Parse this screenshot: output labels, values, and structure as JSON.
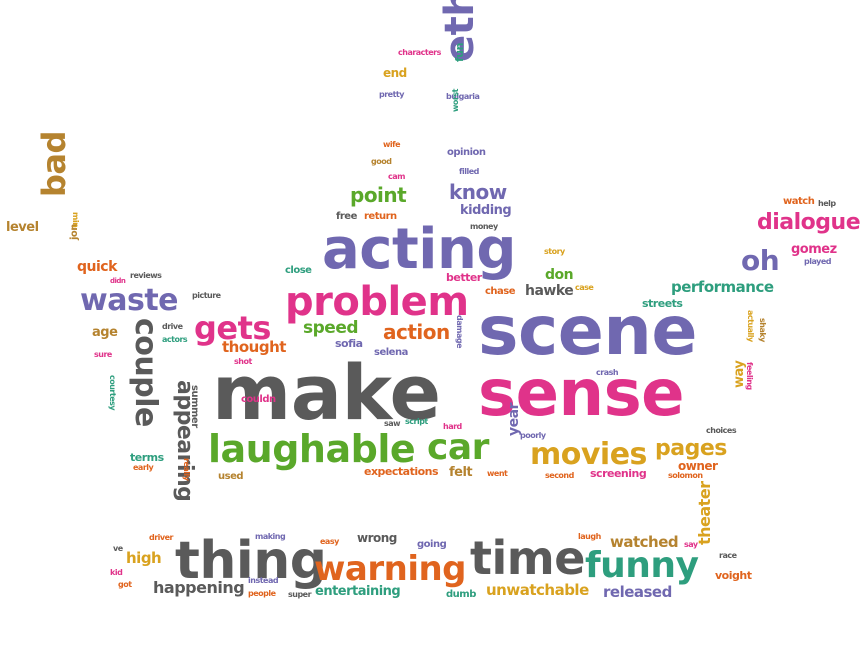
{
  "colors": {
    "gray": "#5a5a5a",
    "purple": "#7068b0",
    "magenta": "#e0338a",
    "green": "#5aa82a",
    "orange": "#e0641e",
    "gold": "#d9a21f",
    "teal": "#2e9e7e",
    "brown": "#b5832f"
  },
  "words": [
    {
      "text": "make",
      "color": "gray"
    },
    {
      "text": "scene",
      "color": "purple"
    },
    {
      "text": "sense",
      "color": "magenta"
    },
    {
      "text": "acting",
      "color": "purple"
    },
    {
      "text": "problem",
      "color": "magenta"
    },
    {
      "text": "ethan",
      "color": "purple"
    },
    {
      "text": "laughable",
      "color": "green"
    },
    {
      "text": "car",
      "color": "green"
    },
    {
      "text": "movies",
      "color": "gold"
    },
    {
      "text": "pages",
      "color": "gold"
    },
    {
      "text": "waste",
      "color": "purple"
    },
    {
      "text": "gets",
      "color": "magenta"
    },
    {
      "text": "couple",
      "color": "gray"
    },
    {
      "text": "appearing",
      "color": "gray"
    },
    {
      "text": "thing",
      "color": "gray"
    },
    {
      "text": "warning",
      "color": "orange"
    },
    {
      "text": "time",
      "color": "gray"
    },
    {
      "text": "funny",
      "color": "teal"
    },
    {
      "text": "dialogue",
      "color": "magenta"
    },
    {
      "text": "oh",
      "color": "purple"
    },
    {
      "text": "bad",
      "color": "brown"
    },
    {
      "text": "know",
      "color": "purple"
    },
    {
      "text": "point",
      "color": "green"
    },
    {
      "text": "kidding",
      "color": "purple"
    },
    {
      "text": "action",
      "color": "orange"
    },
    {
      "text": "speed",
      "color": "green"
    },
    {
      "text": "thought",
      "color": "orange"
    },
    {
      "text": "performance",
      "color": "teal"
    },
    {
      "text": "hawke",
      "color": "gray"
    },
    {
      "text": "don",
      "color": "green"
    },
    {
      "text": "gomez",
      "color": "magenta"
    },
    {
      "text": "quick",
      "color": "orange"
    },
    {
      "text": "level",
      "color": "brown"
    },
    {
      "text": "jon",
      "color": "brown"
    },
    {
      "text": "age",
      "color": "brown"
    },
    {
      "text": "watched",
      "color": "brown"
    },
    {
      "text": "theater",
      "color": "gold"
    },
    {
      "text": "unwatchable",
      "color": "gold"
    },
    {
      "text": "released",
      "color": "purple"
    },
    {
      "text": "entertaining",
      "color": "teal"
    },
    {
      "text": "happening",
      "color": "gray"
    },
    {
      "text": "high",
      "color": "gold"
    },
    {
      "text": "wrong",
      "color": "gray"
    },
    {
      "text": "owner",
      "color": "orange"
    },
    {
      "text": "way",
      "color": "gold"
    },
    {
      "text": "expectations",
      "color": "orange"
    },
    {
      "text": "felt",
      "color": "brown"
    },
    {
      "text": "year",
      "color": "purple"
    },
    {
      "text": "screening",
      "color": "magenta"
    },
    {
      "text": "terms",
      "color": "teal"
    },
    {
      "text": "end",
      "color": "gold"
    },
    {
      "text": "fun",
      "color": "teal"
    },
    {
      "text": "opinion",
      "color": "purple"
    },
    {
      "text": "return",
      "color": "orange"
    },
    {
      "text": "free",
      "color": "gray"
    },
    {
      "text": "close",
      "color": "teal"
    },
    {
      "text": "better",
      "color": "magenta"
    },
    {
      "text": "chase",
      "color": "orange"
    },
    {
      "text": "streets",
      "color": "teal"
    },
    {
      "text": "sofia",
      "color": "purple"
    },
    {
      "text": "selena",
      "color": "purple"
    },
    {
      "text": "used",
      "color": "brown"
    },
    {
      "text": "couldn",
      "color": "magenta"
    },
    {
      "text": "summer",
      "color": "gray"
    },
    {
      "text": "voight",
      "color": "orange"
    },
    {
      "text": "going",
      "color": "purple"
    },
    {
      "text": "dumb",
      "color": "teal"
    },
    {
      "text": "watch",
      "color": "orange"
    },
    {
      "text": "characters",
      "color": "magenta"
    },
    {
      "text": "pretty",
      "color": "purple"
    },
    {
      "text": "bulgaria",
      "color": "purple"
    },
    {
      "text": "worst",
      "color": "teal"
    },
    {
      "text": "wife",
      "color": "orange"
    },
    {
      "text": "good",
      "color": "brown"
    },
    {
      "text": "cam",
      "color": "magenta"
    },
    {
      "text": "filled",
      "color": "purple"
    },
    {
      "text": "money",
      "color": "gray"
    },
    {
      "text": "story",
      "color": "gold"
    },
    {
      "text": "reviews",
      "color": "gray"
    },
    {
      "text": "didn",
      "color": "magenta"
    },
    {
      "text": "picture",
      "color": "gray"
    },
    {
      "text": "drive",
      "color": "gray"
    },
    {
      "text": "actors",
      "color": "teal"
    },
    {
      "text": "sure",
      "color": "magenta"
    },
    {
      "text": "shot",
      "color": "magenta"
    },
    {
      "text": "saw",
      "color": "gray"
    },
    {
      "text": "script",
      "color": "teal"
    },
    {
      "text": "hard",
      "color": "magenta"
    },
    {
      "text": "crash",
      "color": "purple"
    },
    {
      "text": "damage",
      "color": "purple"
    },
    {
      "text": "case",
      "color": "gold"
    },
    {
      "text": "poorly",
      "color": "purple"
    },
    {
      "text": "went",
      "color": "orange"
    },
    {
      "text": "second",
      "color": "orange"
    },
    {
      "text": "solomon",
      "color": "orange"
    },
    {
      "text": "choices",
      "color": "gray"
    },
    {
      "text": "courtesy",
      "color": "teal"
    },
    {
      "text": "early",
      "color": "orange"
    },
    {
      "text": "really",
      "color": "orange"
    },
    {
      "text": "help",
      "color": "gray"
    },
    {
      "text": "played",
      "color": "purple"
    },
    {
      "text": "actually",
      "color": "gold"
    },
    {
      "text": "feeling",
      "color": "magenta"
    },
    {
      "text": "shaky",
      "color": "brown"
    },
    {
      "text": "min",
      "color": "gold"
    },
    {
      "text": "driver",
      "color": "orange"
    },
    {
      "text": "making",
      "color": "purple"
    },
    {
      "text": "easy",
      "color": "orange"
    },
    {
      "text": "laugh",
      "color": "orange"
    },
    {
      "text": "say",
      "color": "magenta"
    },
    {
      "text": "race",
      "color": "gray"
    },
    {
      "text": "ve",
      "color": "gray"
    },
    {
      "text": "kid",
      "color": "magenta"
    },
    {
      "text": "got",
      "color": "orange"
    },
    {
      "text": "instead",
      "color": "purple"
    },
    {
      "text": "people",
      "color": "orange"
    },
    {
      "text": "super",
      "color": "gray"
    }
  ]
}
